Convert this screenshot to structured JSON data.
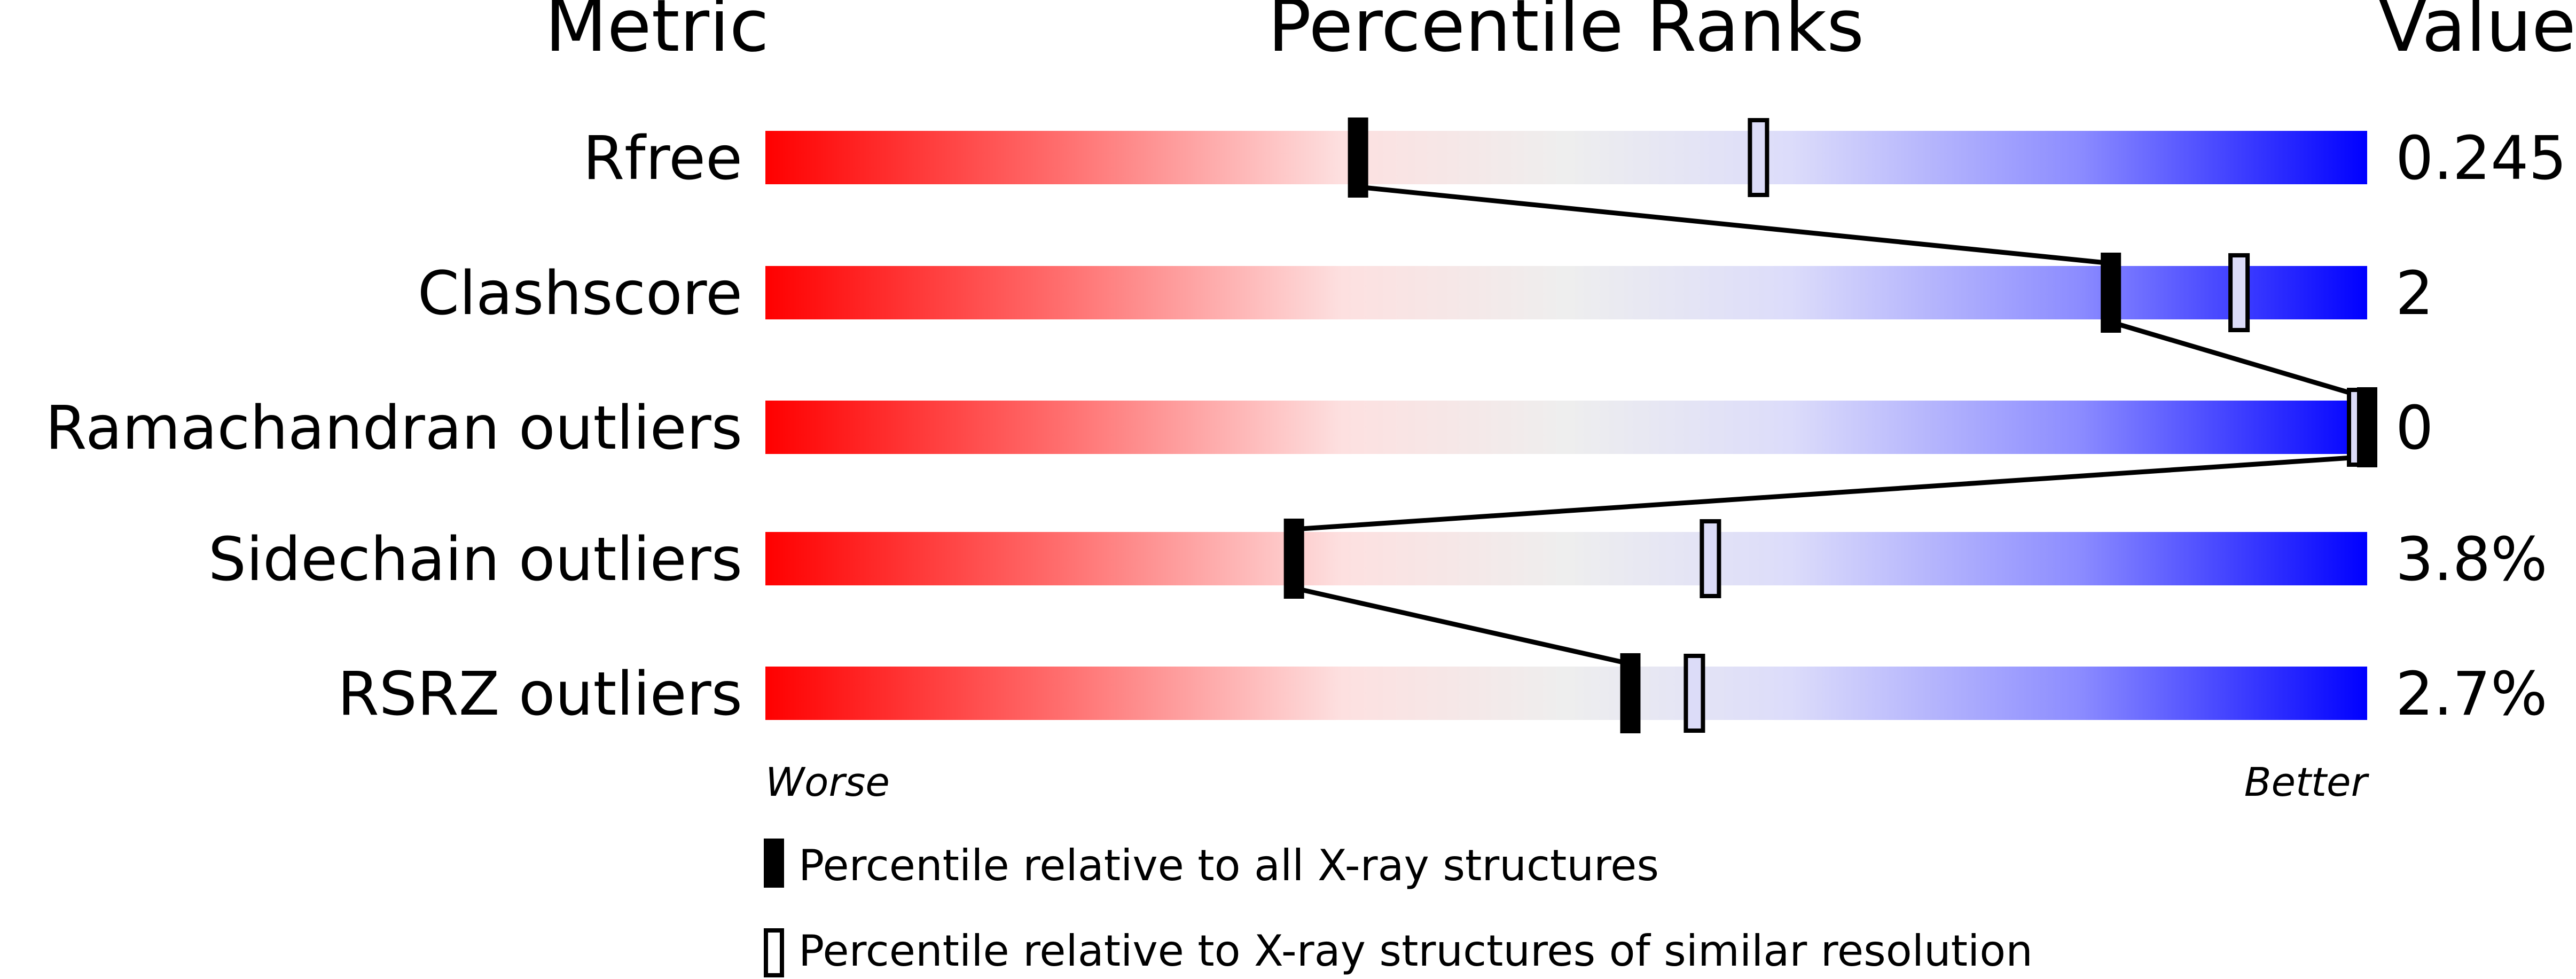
{
  "chart_data": {
    "type": "percentile-bar",
    "headers": {
      "metric": "Metric",
      "ranks": "Percentile Ranks",
      "value": "Value"
    },
    "xlim": [
      0,
      100
    ],
    "axis_labels": {
      "left": "Worse",
      "right": "Better"
    },
    "colors": {
      "worse": "#ff0000",
      "middle": "#eeeeee",
      "better": "#0000ff",
      "marker": "#000000"
    },
    "rows": [
      {
        "metric": "Rfree",
        "value": "0.245",
        "percentile_all": 37,
        "percentile_similar": 62
      },
      {
        "metric": "Clashscore",
        "value": "2",
        "percentile_all": 84,
        "percentile_similar": 92
      },
      {
        "metric": "Ramachandran outliers",
        "value": "0",
        "percentile_all": 100,
        "percentile_similar": 100
      },
      {
        "metric": "Sidechain outliers",
        "value": "3.8%",
        "percentile_all": 33,
        "percentile_similar": 59
      },
      {
        "metric": "RSRZ outliers",
        "value": "2.7%",
        "percentile_all": 54,
        "percentile_similar": 58
      }
    ],
    "legend": [
      {
        "marker": "filled",
        "label": "Percentile relative to all X-ray structures"
      },
      {
        "marker": "open",
        "label": "Percentile relative to X-ray structures of similar resolution"
      }
    ]
  }
}
